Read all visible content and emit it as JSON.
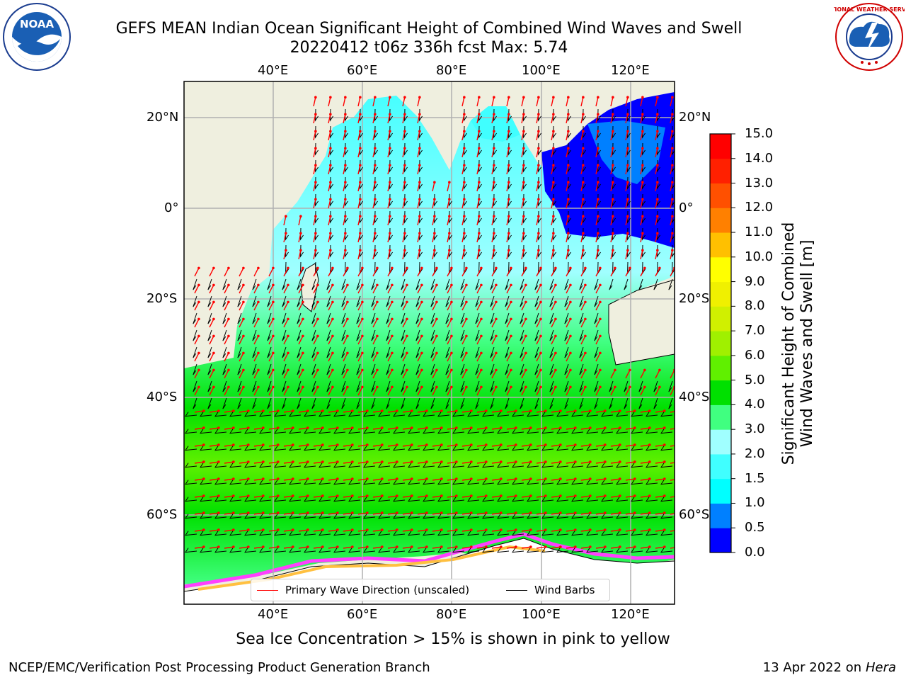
{
  "title": {
    "line1": "GEFS MEAN Indian Ocean Significant Height of Combined Wind Waves and Swell",
    "line2": "20220412 t06z 336h fcst   Max: 5.74"
  },
  "axes": {
    "lon_ticks": [
      "40°E",
      "60°E",
      "80°E",
      "100°E",
      "120°E"
    ],
    "lat_ticks": [
      "20°N",
      "0°",
      "20°S",
      "40°S",
      "60°S"
    ]
  },
  "colorbar": {
    "title_line1": "Significant Height of Combined",
    "title_line2": "Wind Waves and Swell [m]",
    "levels": [
      "0.0",
      "0.5",
      "1.0",
      "1.5",
      "2.0",
      "3.0",
      "4.0",
      "5.0",
      "6.0",
      "7.0",
      "8.0",
      "9.0",
      "10.0",
      "11.0",
      "12.0",
      "13.0",
      "14.0",
      "15.0"
    ],
    "colors": [
      "#0000ff",
      "#0080ff",
      "#00ffff",
      "#40ffff",
      "#a0ffff",
      "#40ff80",
      "#00e000",
      "#60f000",
      "#a0f000",
      "#d0f000",
      "#f0f000",
      "#ffff00",
      "#ffc000",
      "#ff8000",
      "#ff5000",
      "#ff2000",
      "#ff0000"
    ]
  },
  "legend": {
    "wave_direction": "Primary Wave Direction (unscaled)",
    "wind_barbs": "Wind Barbs"
  },
  "note": "Sea Ice Concentration > 15% is shown in pink to yellow",
  "footer": {
    "left": "NCEP/EMC/Verification Post Processing Product Generation Branch",
    "date": "13 Apr 2022 on ",
    "system": "Hera"
  },
  "logos": {
    "noaa": "NOAA",
    "nws": "NATIONAL WEATHER SERVICE"
  },
  "colors": {
    "land": "#efefdf",
    "wave_arrow": "#ff0000",
    "wind_barb": "#000000",
    "grid": "#b0b0b0"
  }
}
